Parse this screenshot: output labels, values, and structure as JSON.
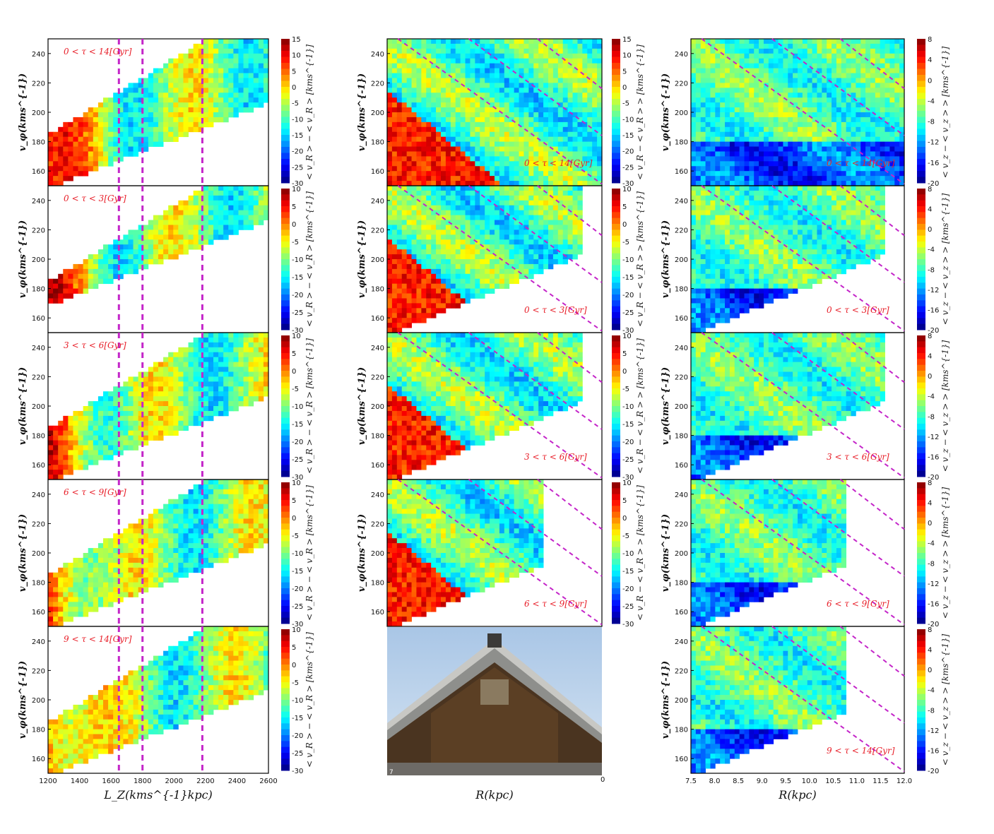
{
  "chart_data": {
    "type": "heatmap",
    "colormap": [
      "#00007f",
      "#0000ff",
      "#007fff",
      "#00ffff",
      "#7fff7f",
      "#ffff00",
      "#ff7f00",
      "#ff0000",
      "#7f0000"
    ],
    "ylabel": "v_φ(kms^{-1})",
    "ylim": [
      150,
      250
    ],
    "yticks": [
      "160",
      "180",
      "200",
      "220",
      "240"
    ],
    "age_bins": [
      "0 < τ < 14[Gyr]",
      "0 < τ < 3[Gyr]",
      "3 < τ < 6[Gyr]",
      "6 < τ < 9[Gyr]",
      "9 < τ < 14[Gyr]"
    ],
    "columns": [
      {
        "xlabel": "L_Z(kms^{-1}kpc)",
        "xlim": [
          1200,
          2600
        ],
        "xticks": [
          "1200",
          "1400",
          "1600",
          "1800",
          "2000",
          "2200",
          "2400",
          "2600"
        ],
        "vertical_lines": [
          1650,
          1800,
          2180
        ],
        "colorbar_label": "< v_R > − < v_R > [kms^{-1}]",
        "colorbar_range": [
          -30,
          15
        ],
        "colorbar_ticks_top": [
          "15",
          "10",
          "5",
          "0",
          "-5",
          "-10",
          "-15",
          "-20",
          "-25",
          "-30"
        ],
        "colorbar_ticks": [
          "10",
          "5",
          "0",
          "-5",
          "-10",
          "-15",
          "-20",
          "-25",
          "-30"
        ]
      },
      {
        "xlabel": "R(kpc)",
        "xlim": [
          7.5,
          12.0
        ],
        "colorbar_label": "< v_R − < v_R > > [kms^{-1}]",
        "colorbar_range": [
          -30,
          15
        ],
        "colorbar_ticks_top": [
          "15",
          "10",
          "5",
          "0",
          "-5",
          "-10",
          "-15",
          "-20",
          "-25",
          "-30"
        ],
        "colorbar_ticks": [
          "10",
          "5",
          "0",
          "-5",
          "-10",
          "-15",
          "-20",
          "-25",
          "-30"
        ],
        "photo_corner_text": "7",
        "photo_edge_text": "0"
      },
      {
        "xlabel": "R(kpc)",
        "xlim": [
          7.5,
          12.0
        ],
        "xticks": [
          "7.5",
          "8.0",
          "8.5",
          "9.0",
          "9.5",
          "10.0",
          "10.5",
          "11.0",
          "11.5",
          "12.0"
        ],
        "colorbar_label": "< v_z − < v_z > > [kms^{-1}]",
        "colorbar_range": [
          -20,
          8
        ],
        "colorbar_ticks": [
          "8",
          "4",
          "0",
          "-4",
          "-8",
          "-12",
          "-16",
          "-20"
        ]
      }
    ]
  }
}
